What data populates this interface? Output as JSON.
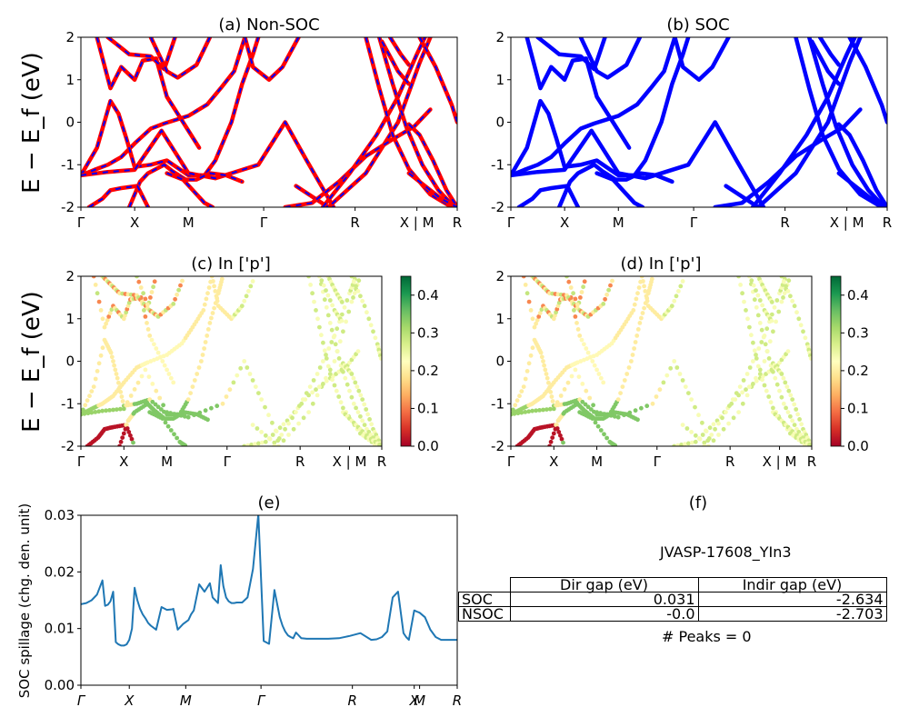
{
  "chart_data": [
    {
      "panel": "a",
      "type": "line",
      "title": "(a) Non-SOC",
      "ylabel": "E − E_f (eV)",
      "ylim": [
        -2,
        2
      ],
      "yticks": [
        -2,
        -1,
        0,
        1,
        2
      ],
      "kpath": [
        "Γ",
        "X",
        "M",
        "Γ",
        "R",
        "X | M",
        "R"
      ],
      "series_colors": {
        "non_soc": "#ff0000",
        "soc_overlay": "#0000ff"
      },
      "bands": [
        [
          [
            0,
            -1.25
          ],
          [
            0.25,
            -1.12
          ],
          [
            0.5,
            -1.0
          ],
          [
            0.75,
            -0.82
          ],
          [
            1,
            -0.5
          ],
          [
            1.3,
            -0.15
          ],
          [
            1.55,
            -0.03
          ],
          [
            2,
            0.15
          ],
          [
            2.35,
            0.42
          ],
          [
            2.6,
            0.8
          ],
          [
            2.85,
            1.2
          ],
          [
            3.05,
            2.0
          ]
        ],
        [
          [
            0,
            -1.25
          ],
          [
            0.3,
            -0.6
          ],
          [
            0.55,
            0.5
          ],
          [
            0.7,
            0.2
          ],
          [
            0.85,
            -0.4
          ],
          [
            1.0,
            -1.05
          ],
          [
            1.3,
            -1.0
          ],
          [
            1.6,
            -0.9
          ],
          [
            2.0,
            -1.25
          ],
          [
            2.3,
            -1.25
          ],
          [
            2.5,
            -0.9
          ],
          [
            2.8,
            0.0
          ],
          [
            3.0,
            0.9
          ],
          [
            3.2,
            1.6
          ],
          [
            3.3,
            2.0
          ]
        ],
        [
          [
            0,
            -1.25
          ],
          [
            0.5,
            -1.17
          ],
          [
            1.0,
            -1.12
          ],
          [
            1.5,
            -0.2
          ],
          [
            2.0,
            -1.2
          ],
          [
            2.5,
            -1.32
          ],
          [
            3.3,
            -1.0
          ],
          [
            3.8,
            0.0
          ],
          [
            4.2,
            -0.9
          ],
          [
            4.7,
            -2.0
          ]
        ],
        [
          [
            0.3,
            2.0
          ],
          [
            0.55,
            0.8
          ],
          [
            0.75,
            1.3
          ],
          [
            1.0,
            1.0
          ],
          [
            1.15,
            1.45
          ],
          [
            1.4,
            1.5
          ],
          [
            1.6,
            0.6
          ],
          [
            1.9,
            0.0
          ],
          [
            2.2,
            -0.6
          ]
        ],
        [
          [
            0.9,
            -2.0
          ],
          [
            1.1,
            -1.4
          ],
          [
            1.25,
            -1.2
          ],
          [
            1.55,
            -1.0
          ],
          [
            1.7,
            -1.15
          ],
          [
            1.95,
            -1.35
          ],
          [
            2.15,
            -1.35
          ],
          [
            2.4,
            -1.2
          ],
          [
            2.7,
            -1.25
          ],
          [
            3.0,
            -1.4
          ]
        ],
        [
          [
            1.6,
            -1.2
          ],
          [
            1.9,
            -1.35
          ],
          [
            2.3,
            -1.9
          ],
          [
            2.45,
            -2.0
          ]
        ],
        [
          [
            0.15,
            -2.0
          ],
          [
            0.4,
            -1.8
          ],
          [
            0.55,
            -1.6
          ],
          [
            0.75,
            -1.55
          ],
          [
            1.05,
            -1.5
          ],
          [
            1.25,
            -2.0
          ]
        ],
        [
          [
            0.5,
            2.0
          ],
          [
            0.7,
            1.8
          ],
          [
            0.9,
            1.6
          ],
          [
            1.3,
            1.55
          ],
          [
            1.55,
            1.25
          ],
          [
            1.75,
            2.0
          ]
        ],
        [
          [
            1.3,
            2.0
          ],
          [
            1.6,
            1.2
          ],
          [
            1.8,
            1.05
          ],
          [
            2.15,
            1.35
          ],
          [
            2.4,
            2.0
          ]
        ],
        [
          [
            3.05,
            2.0
          ],
          [
            3.2,
            1.3
          ],
          [
            3.5,
            1.0
          ],
          [
            3.75,
            1.3
          ],
          [
            4.05,
            2.0
          ]
        ],
        [
          [
            4.0,
            -1.5
          ],
          [
            4.6,
            -2.0
          ],
          [
            5.3,
            -1.2
          ],
          [
            5.9,
            0.0
          ],
          [
            6.3,
            1.4
          ],
          [
            6.5,
            2.0
          ]
        ],
        [
          [
            3.8,
            -2.0
          ],
          [
            4.3,
            -1.9
          ],
          [
            4.8,
            -1.4
          ],
          [
            5.3,
            -0.8
          ],
          [
            5.8,
            -0.4
          ],
          [
            6.2,
            -0.1
          ],
          [
            6.5,
            0.3
          ]
        ],
        [
          [
            4.5,
            -2.0
          ],
          [
            5.0,
            -1.2
          ],
          [
            5.5,
            -0.3
          ],
          [
            5.9,
            0.6
          ],
          [
            6.25,
            1.6
          ],
          [
            6.4,
            2.0
          ]
        ],
        [
          [
            5.3,
            2.0
          ],
          [
            5.55,
            0.8
          ],
          [
            5.8,
            -0.3
          ],
          [
            6.1,
            -1.1
          ],
          [
            6.5,
            -1.7
          ],
          [
            6.9,
            -2.0
          ]
        ],
        [
          [
            5.55,
            2.0
          ],
          [
            5.8,
            0.9
          ],
          [
            6.05,
            -0.1
          ],
          [
            6.35,
            -1.0
          ],
          [
            6.65,
            -1.6
          ],
          [
            6.95,
            -2.0
          ]
        ],
        [
          [
            6.1,
            -0.05
          ],
          [
            6.3,
            -0.3
          ],
          [
            6.55,
            -0.9
          ],
          [
            6.8,
            -1.6
          ],
          [
            7.0,
            -2.0
          ]
        ],
        [
          [
            6.1,
            -1.2
          ],
          [
            6.4,
            -1.5
          ],
          [
            6.7,
            -1.8
          ],
          [
            7.0,
            -2.0
          ]
        ],
        [
          [
            5.6,
            1.9
          ],
          [
            5.9,
            1.2
          ],
          [
            6.1,
            0.9
          ]
        ],
        [
          [
            5.75,
            2.0
          ],
          [
            5.95,
            1.6
          ],
          [
            6.1,
            1.35
          ]
        ],
        [
          [
            6.3,
            2.0
          ],
          [
            6.6,
            1.3
          ],
          [
            6.9,
            0.4
          ],
          [
            7.0,
            0.0
          ]
        ]
      ]
    },
    {
      "panel": "b",
      "type": "line",
      "title": "(b) SOC",
      "ylim": [
        -2,
        2
      ],
      "yticks": [
        -2,
        -1,
        0,
        1,
        2
      ],
      "kpath": [
        "Γ",
        "X",
        "M",
        "Γ",
        "R",
        "X | M",
        "R"
      ],
      "series_colors": {
        "soc": "#0000ff"
      }
    },
    {
      "panel": "c",
      "type": "scatter",
      "title": "(c)  In ['p']",
      "ylabel": "E − E_f (eV)",
      "ylim": [
        -2,
        2
      ],
      "yticks": [
        -2,
        -1,
        0,
        1,
        2
      ],
      "kpath": [
        "Γ",
        "X",
        "M",
        "Γ",
        "R",
        "X | M",
        "R"
      ],
      "colorbar": {
        "min": 0.0,
        "max": 0.45,
        "ticks": [
          "0.0",
          "0.1",
          "0.2",
          "0.3",
          "0.4"
        ],
        "colormap": "RdYlGn"
      }
    },
    {
      "panel": "d",
      "type": "scatter",
      "title": "(d) In ['p']",
      "ylim": [
        -2,
        2
      ],
      "yticks": [
        -2,
        -1,
        0,
        1,
        2
      ],
      "kpath": [
        "Γ",
        "X",
        "M",
        "Γ",
        "R",
        "X | M",
        "R"
      ],
      "colorbar": {
        "min": 0.0,
        "max": 0.45,
        "ticks": [
          "0.0",
          "0.1",
          "0.2",
          "0.3",
          "0.4"
        ],
        "colormap": "RdYlGn"
      }
    },
    {
      "panel": "e",
      "type": "line",
      "title": "(e)",
      "ylabel": "SOC spillage (chg. den. unit)",
      "ylim": [
        0.0,
        0.03
      ],
      "yticks": [
        "0.00",
        "0.01",
        "0.02",
        "0.03"
      ],
      "kpath": [
        "Γ",
        "X",
        "M",
        "Γ",
        "R",
        "X",
        "M",
        "R"
      ],
      "series_colors": {
        "spillage": "#1f77b4"
      },
      "x": [
        0,
        0.1,
        0.2,
        0.3,
        0.4,
        0.45,
        0.5,
        0.55,
        0.6,
        0.65,
        0.7,
        0.75,
        0.8,
        0.85,
        0.9,
        0.95,
        1.0,
        1.05,
        1.1,
        1.15,
        1.2,
        1.25,
        1.3,
        1.4,
        1.5,
        1.6,
        1.7,
        1.72,
        1.8,
        1.9,
        2.0,
        2.05,
        2.1,
        2.2,
        2.3,
        2.4,
        2.45,
        2.5,
        2.55,
        2.6,
        2.65,
        2.7,
        2.75,
        2.8,
        2.85,
        2.9,
        2.95,
        3.0,
        3.1,
        3.2,
        3.3,
        3.4,
        3.5,
        3.6,
        3.7,
        3.75,
        3.8,
        3.85,
        3.9,
        3.95,
        4.0,
        4.1,
        4.2,
        4.3,
        4.4,
        4.5,
        4.6,
        4.8,
        5.0,
        5.2,
        5.4,
        5.5,
        5.6,
        5.7,
        5.8,
        5.9,
        6.0,
        6.05,
        6.1,
        6.2,
        6.25,
        6.3,
        6.4,
        6.5,
        6.6,
        6.7,
        6.8,
        6.9,
        7.0
      ],
      "values": [
        0.0143,
        0.0145,
        0.015,
        0.016,
        0.0185,
        0.014,
        0.0142,
        0.0148,
        0.0165,
        0.0076,
        0.0072,
        0.007,
        0.007,
        0.0072,
        0.008,
        0.01,
        0.0172,
        0.015,
        0.0135,
        0.0125,
        0.0118,
        0.011,
        0.0105,
        0.0098,
        0.0138,
        0.0133,
        0.0134,
        0.0135,
        0.0098,
        0.0108,
        0.0115,
        0.0125,
        0.0132,
        0.0178,
        0.0165,
        0.018,
        0.0155,
        0.015,
        0.0145,
        0.0212,
        0.0175,
        0.0155,
        0.0148,
        0.0145,
        0.0145,
        0.0146,
        0.0146,
        0.0146,
        0.0155,
        0.0205,
        0.0302,
        0.0078,
        0.0073,
        0.0168,
        0.012,
        0.0105,
        0.0095,
        0.0088,
        0.0085,
        0.0083,
        0.0093,
        0.0083,
        0.0082,
        0.0082,
        0.0082,
        0.0082,
        0.0082,
        0.0083,
        0.0087,
        0.0092,
        0.008,
        0.0081,
        0.0085,
        0.0095,
        0.0155,
        0.0165,
        0.0092,
        0.0085,
        0.008,
        0.0132,
        0.013,
        0.0128,
        0.012,
        0.0098,
        0.0085,
        0.008,
        0.008,
        0.008,
        0.008
      ]
    }
  ],
  "panel_f": {
    "title": "(f)",
    "material": "JVASP-17608_YIn3",
    "columns": [
      "Dir gap (eV)",
      "Indir gap (eV)"
    ],
    "rows": [
      {
        "label": "SOC",
        "dir": "0.031",
        "indir": "-2.634"
      },
      {
        "label": "NSOC",
        "dir": "-0.0",
        "indir": "-2.703"
      }
    ],
    "peaks": "# Peaks = 0"
  }
}
